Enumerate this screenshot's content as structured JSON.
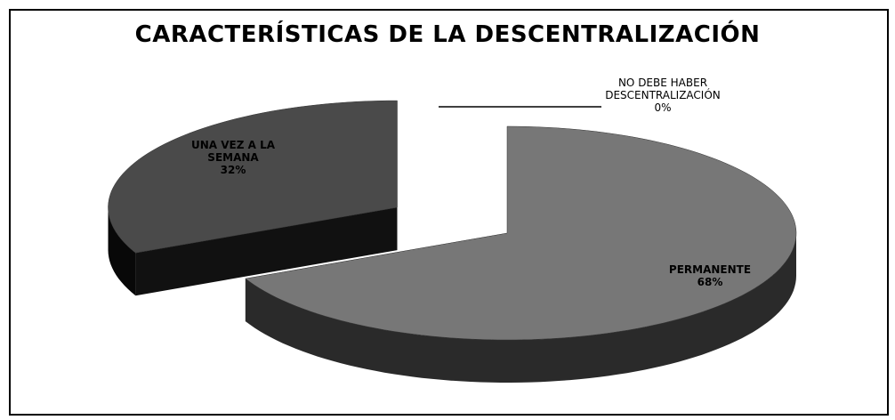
{
  "chart_data": {
    "type": "pie",
    "title": "CARACTERÍSTICAS DE LA DESCENTRALIZACIÓN",
    "categories": [
      "PERMANENTE",
      "UNA VEZ A LA SEMANA",
      "NO DEBE HABER DESCENTRALIZACIÓN"
    ],
    "values": [
      68,
      32,
      0
    ],
    "value_labels": [
      "68%",
      "32%",
      "0%"
    ],
    "colors": [
      "#777777",
      "#4a4a4a",
      "#ffffff"
    ]
  }
}
